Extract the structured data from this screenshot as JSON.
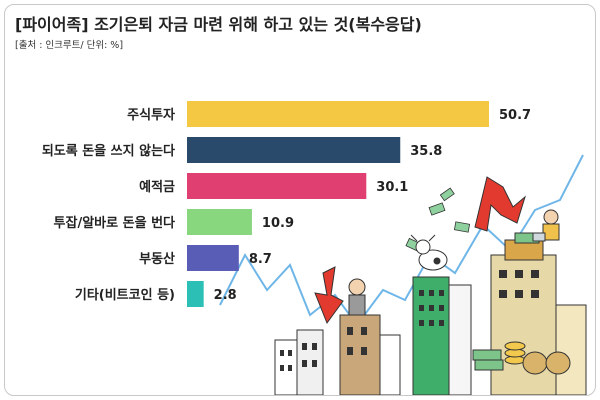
{
  "header": {
    "title": "[파이어족] 조기은퇴 자금 마련 위해 하고 있는 것(복수응답)",
    "subtitle": "[출처 : 인크루트/ 단위: %]"
  },
  "colors": {
    "bar_1": "#f4c842",
    "bar_2": "#2a4a6b",
    "bar_3": "#e03f72",
    "bar_4": "#88d67e",
    "bar_5": "#5a5db6",
    "bar_6": "#2bbfb6",
    "trend_line": "#6fb6e8"
  },
  "chart_data": {
    "type": "bar",
    "orientation": "horizontal",
    "title": "[파이어족] 조기은퇴 자금 마련 위해 하고 있는 것(복수응답)",
    "unit": "%",
    "categories": [
      "주식투자",
      "되도록 돈을 쓰지 않는다",
      "예적금",
      "투잡/알바로 돈을 번다",
      "부동산",
      "기타(비트코인 등)"
    ],
    "values": [
      50.7,
      35.8,
      30.1,
      10.9,
      8.7,
      2.8
    ],
    "value_labels": [
      "50.7",
      "35.8",
      "30.1",
      "10.9",
      "8.7",
      "2.8"
    ],
    "xlim": [
      0,
      50.7
    ],
    "grid": false,
    "legend": "none"
  }
}
